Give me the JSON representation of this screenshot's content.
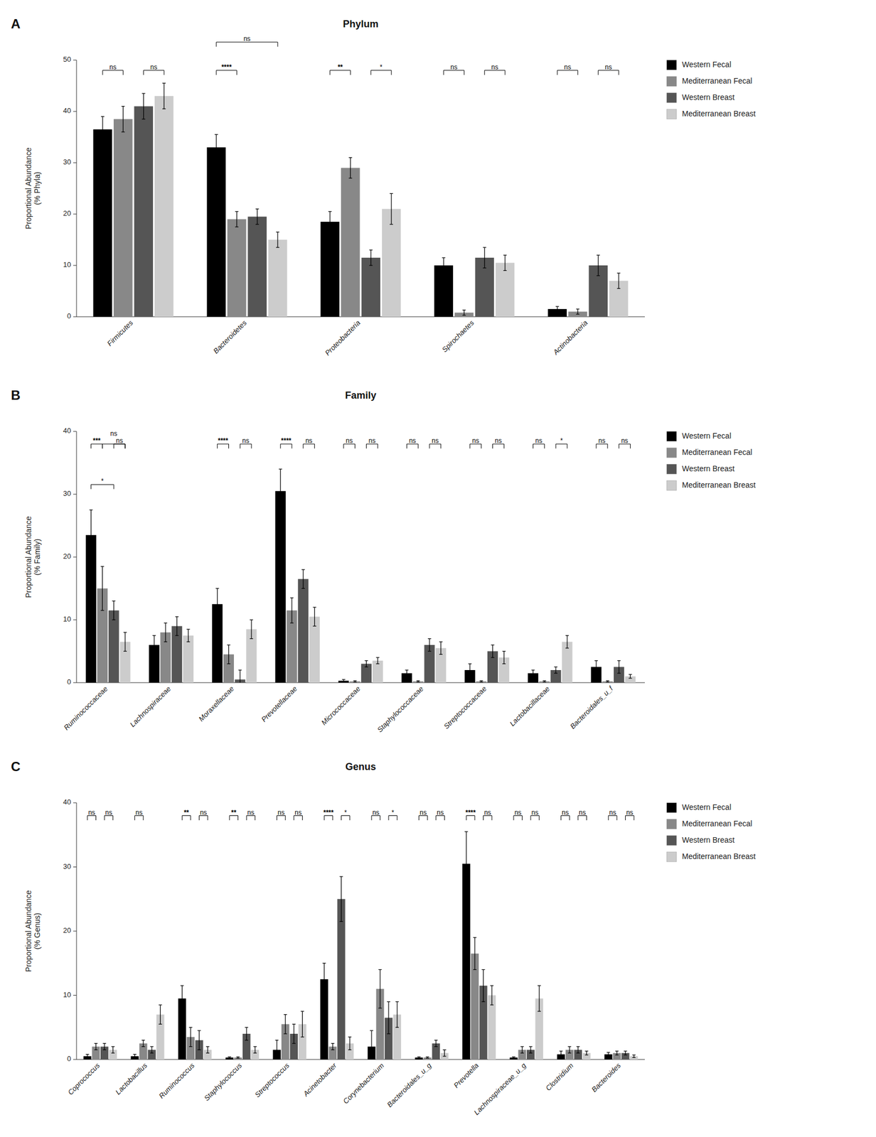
{
  "chart_data": [
    {
      "type": "bar",
      "title": "Phylum",
      "ylabel": "Proportional Abundance\n(% Phyla)",
      "categories": [
        "Firmicutes",
        "Bacteroidetes",
        "Proteobacteria",
        "Spirochaetes",
        "Actinobacteria"
      ],
      "series": [
        {
          "name": "Western Fecal",
          "color": "#000000",
          "values": [
            36.5,
            33.0,
            18.5,
            10.0,
            1.5
          ],
          "errors": [
            2.5,
            2.5,
            2.0,
            1.5,
            0.5
          ]
        },
        {
          "name": "Mediterranean Fecal",
          "color": "#888888",
          "values": [
            38.5,
            19.0,
            29.0,
            0.8,
            1.0
          ],
          "errors": [
            2.5,
            1.5,
            2.0,
            0.5,
            0.5
          ]
        },
        {
          "name": "Western Breast",
          "color": "#555555",
          "values": [
            41.0,
            19.5,
            11.5,
            11.5,
            10.0
          ],
          "errors": [
            2.5,
            1.5,
            1.5,
            2.0,
            2.0
          ]
        },
        {
          "name": "Mediterranean Breast",
          "color": "#cccccc",
          "values": [
            43.0,
            15.0,
            21.0,
            10.5,
            7.0
          ],
          "errors": [
            2.5,
            1.5,
            3.0,
            1.5,
            1.5
          ]
        }
      ],
      "ylim": [
        0,
        50
      ],
      "yticks": [
        0,
        10,
        20,
        30,
        40,
        50
      ],
      "grid": false,
      "legend": "upper right",
      "annotations": [
        {
          "text": "A"
        },
        {
          "text": "ns",
          "category": "Firmicutes",
          "from": "Western Fecal",
          "to": "Mediterranean Fecal",
          "y": 48
        },
        {
          "text": "ns",
          "category": "Firmicutes",
          "from": "Western Breast",
          "to": "Mediterranean Breast",
          "y": 48
        },
        {
          "text": "****",
          "category": "Bacteroidetes",
          "from": "Western Fecal",
          "to": "Mediterranean Fecal",
          "y": 48
        },
        {
          "text": "ns",
          "category": "Bacteroidetes",
          "from": "Western Fecal",
          "to": "Mediterranean Breast",
          "y": 53.5
        },
        {
          "text": "**",
          "category": "Proteobacteria",
          "from": "Western Fecal",
          "to": "Mediterranean Fecal",
          "y": 48
        },
        {
          "text": "*",
          "category": "Proteobacteria",
          "from": "Western Breast",
          "to": "Mediterranean Breast",
          "y": 48
        },
        {
          "text": "ns",
          "category": "Spirochaetes",
          "from": "Western Fecal",
          "to": "Mediterranean Fecal",
          "y": 48
        },
        {
          "text": "ns",
          "category": "Spirochaetes",
          "from": "Western Breast",
          "to": "Mediterranean Breast",
          "y": 48
        },
        {
          "text": "ns",
          "category": "Actinobacteria",
          "from": "Western Fecal",
          "to": "Mediterranean Fecal",
          "y": 48
        },
        {
          "text": "ns",
          "category": "Actinobacteria",
          "from": "Western Breast",
          "to": "Mediterranean Breast",
          "y": 48
        }
      ]
    },
    {
      "type": "bar",
      "title": "Family",
      "ylabel": "Proportional Abundance\n(% Family)",
      "categories": [
        "Ruminococcaceae",
        "Lachnospiraceae",
        "Moraxellaceae",
        "Prevotellaceae",
        "Micrococcaceae",
        "Staphylococcaceae",
        "Streptococcaceae",
        "Lactobacillaceae",
        "Bacteroidales_u_f"
      ],
      "series": [
        {
          "name": "Western Fecal",
          "color": "#000000",
          "values": [
            23.5,
            6.0,
            12.5,
            30.5,
            0.3,
            1.5,
            2.0,
            1.5,
            2.5
          ],
          "errors": [
            4.0,
            1.5,
            2.5,
            3.5,
            0.2,
            0.5,
            1.0,
            0.5,
            1.0
          ]
        },
        {
          "name": "Mediterranean Fecal",
          "color": "#888888",
          "values": [
            15.0,
            8.0,
            4.5,
            11.5,
            0.2,
            0.2,
            0.2,
            0.2,
            0.2
          ],
          "errors": [
            3.5,
            1.5,
            1.5,
            2.0,
            0.1,
            0.1,
            0.1,
            0.1,
            0.1
          ]
        },
        {
          "name": "Western Breast",
          "color": "#555555",
          "values": [
            11.5,
            9.0,
            0.5,
            16.5,
            3.0,
            6.0,
            5.0,
            2.0,
            2.5
          ],
          "errors": [
            1.5,
            1.5,
            1.5,
            1.5,
            0.5,
            1.0,
            1.0,
            0.5,
            1.0
          ]
        },
        {
          "name": "Mediterranean Breast",
          "color": "#cccccc",
          "values": [
            6.5,
            7.5,
            8.5,
            10.5,
            3.5,
            5.5,
            4.0,
            6.5,
            1.0
          ],
          "errors": [
            1.5,
            1.0,
            1.5,
            1.5,
            0.5,
            1.0,
            1.0,
            1.0,
            0.3
          ]
        }
      ],
      "ylim": [
        0,
        40
      ],
      "yticks": [
        0,
        10,
        20,
        30,
        40
      ],
      "grid": false,
      "legend": "upper right",
      "annotations": [
        {
          "text": "B"
        },
        {
          "text": "***",
          "category": "Ruminococcaceae",
          "from": "Western Fecal",
          "to": "Mediterranean Fecal",
          "y": 38
        },
        {
          "text": "*",
          "category": "Ruminococcaceae",
          "from": "Western Fecal",
          "to": "Western Breast",
          "y": 31.54
        },
        {
          "text": "ns",
          "category": "Ruminococcaceae",
          "from": "Western Breast",
          "to": "Mediterranean Breast",
          "y": 38
        },
        {
          "text": "ns",
          "category": "Ruminococcaceae",
          "from": "Mediterranean Fecal",
          "to": "Mediterranean Breast",
          "y": 38
        },
        {
          "text": "****",
          "category": "Moraxellaceae",
          "from": "Western Fecal",
          "to": "Mediterranean Fecal",
          "y": 38
        },
        {
          "text": "ns",
          "category": "Moraxellaceae",
          "from": "Western Breast",
          "to": "Mediterranean Breast",
          "y": 38
        },
        {
          "text": "****",
          "category": "Prevotellaceae",
          "from": "Western Fecal",
          "to": "Mediterranean Fecal",
          "y": 38
        },
        {
          "text": "ns",
          "category": "Prevotellaceae",
          "from": "Western Breast",
          "to": "Mediterranean Breast",
          "y": 38
        },
        {
          "text": "ns",
          "category": "Micrococcaceae",
          "from": "Western Fecal",
          "to": "Mediterranean Fecal",
          "y": 38
        },
        {
          "text": "ns",
          "category": "Micrococcaceae",
          "from": "Western Breast",
          "to": "Mediterranean Breast",
          "y": 38
        },
        {
          "text": "ns",
          "category": "Staphylococcaceae",
          "from": "Western Fecal",
          "to": "Mediterranean Fecal",
          "y": 38
        },
        {
          "text": "ns",
          "category": "Staphylococcaceae",
          "from": "Western Breast",
          "to": "Mediterranean Breast",
          "y": 38
        },
        {
          "text": "ns",
          "category": "Streptococcaceae",
          "from": "Western Fecal",
          "to": "Mediterranean Fecal",
          "y": 38
        },
        {
          "text": "ns",
          "category": "Streptococcaceae",
          "from": "Western Breast",
          "to": "Mediterranean Breast",
          "y": 38
        },
        {
          "text": "ns",
          "category": "Lactobacillaceae",
          "from": "Western Fecal",
          "to": "Mediterranean Fecal",
          "y": 38
        },
        {
          "text": "*",
          "category": "Lactobacillaceae",
          "from": "Western Breast",
          "to": "Mediterranean Breast",
          "y": 38
        },
        {
          "text": "ns",
          "category": "Bacteroidales_u_f",
          "from": "Western Fecal",
          "to": "Mediterranean Fecal",
          "y": 38
        },
        {
          "text": "ns",
          "category": "Bacteroidales_u_f",
          "from": "Western Breast",
          "to": "Mediterranean Breast",
          "y": 38
        }
      ]
    },
    {
      "type": "bar",
      "title": "Genus",
      "ylabel": "Proportional Abundance\n(% Genus)",
      "categories": [
        "Coprococcus",
        "Lactobacillus",
        "Ruminococcus",
        "Staphylococcus",
        "Streptococcus",
        "Acinetobacter",
        "Corynebacterium",
        "Bacteroidales_u_g",
        "Prevotella",
        "Lachnospiraceae_u_g",
        "Clostridium",
        "Bacteroides"
      ],
      "series": [
        {
          "name": "Western Fecal",
          "color": "#000000",
          "values": [
            0.5,
            0.5,
            9.5,
            0.3,
            1.5,
            12.5,
            2.0,
            0.3,
            30.5,
            0.3,
            0.8,
            0.8
          ],
          "errors": [
            0.3,
            0.3,
            2.0,
            0.1,
            1.5,
            2.5,
            2.5,
            0.1,
            5.0,
            0.1,
            0.5,
            0.3
          ]
        },
        {
          "name": "Mediterranean Fecal",
          "color": "#888888",
          "values": [
            2.0,
            2.5,
            3.5,
            0.3,
            5.5,
            2.0,
            11.0,
            0.3,
            16.5,
            1.5,
            1.5,
            1.0
          ],
          "errors": [
            0.5,
            0.5,
            1.5,
            0.1,
            1.5,
            0.5,
            3.0,
            0.1,
            2.5,
            0.5,
            0.5,
            0.3
          ]
        },
        {
          "name": "Western Breast",
          "color": "#555555",
          "values": [
            2.0,
            1.5,
            3.0,
            4.0,
            4.0,
            25.0,
            6.5,
            2.5,
            11.5,
            1.5,
            1.5,
            1.0
          ],
          "errors": [
            0.5,
            0.5,
            1.5,
            1.0,
            1.5,
            3.5,
            2.5,
            0.5,
            2.5,
            0.5,
            0.5,
            0.3
          ]
        },
        {
          "name": "Mediterranean Breast",
          "color": "#cccccc",
          "values": [
            1.5,
            7.0,
            1.5,
            1.5,
            5.5,
            2.5,
            7.0,
            1.0,
            10.0,
            9.5,
            1.0,
            0.5
          ],
          "errors": [
            0.5,
            1.5,
            0.5,
            0.5,
            2.0,
            1.0,
            2.0,
            0.5,
            1.5,
            2.0,
            0.3,
            0.2
          ]
        }
      ],
      "ylim": [
        0,
        40
      ],
      "yticks": [
        0,
        10,
        20,
        30,
        40
      ],
      "grid": false,
      "legend": "upper right",
      "annotations": [
        {
          "text": "C"
        },
        {
          "text": "ns",
          "category": "Coprococcus",
          "from": "Western Fecal",
          "to": "Mediterranean Fecal",
          "y": 38
        },
        {
          "text": "ns",
          "category": "Coprococcus",
          "from": "Western Breast",
          "to": "Mediterranean Breast",
          "y": 38
        },
        {
          "text": "ns",
          "category": "Lactobacillus",
          "from": "Western Fecal",
          "to": "Mediterranean Fecal",
          "y": 38
        },
        {
          "text": "**",
          "category": "Ruminococcus",
          "from": "Western Fecal",
          "to": "Mediterranean Fecal",
          "y": 38
        },
        {
          "text": "ns",
          "category": "Ruminococcus",
          "from": "Western Breast",
          "to": "Mediterranean Breast",
          "y": 38
        },
        {
          "text": "**",
          "category": "Staphylococcus",
          "from": "Western Fecal",
          "to": "Mediterranean Fecal",
          "y": 38
        },
        {
          "text": "ns",
          "category": "Staphylococcus",
          "from": "Western Breast",
          "to": "Mediterranean Breast",
          "y": 38
        },
        {
          "text": "ns",
          "category": "Streptococcus",
          "from": "Western Fecal",
          "to": "Mediterranean Fecal",
          "y": 38
        },
        {
          "text": "ns",
          "category": "Streptococcus",
          "from": "Western Breast",
          "to": "Mediterranean Breast",
          "y": 38
        },
        {
          "text": "****",
          "category": "Acinetobacter",
          "from": "Western Fecal",
          "to": "Mediterranean Fecal",
          "y": 38
        },
        {
          "text": "*",
          "category": "Acinetobacter",
          "from": "Western Breast",
          "to": "Mediterranean Breast",
          "y": 38
        },
        {
          "text": "ns",
          "category": "Corynebacterium",
          "from": "Western Fecal",
          "to": "Mediterranean Fecal",
          "y": 38
        },
        {
          "text": "*",
          "category": "Corynebacterium",
          "from": "Western Breast",
          "to": "Mediterranean Breast",
          "y": 38
        },
        {
          "text": "ns",
          "category": "Bacteroidales_u_g",
          "from": "Western Fecal",
          "to": "Mediterranean Fecal",
          "y": 38
        },
        {
          "text": "ns",
          "category": "Bacteroidales_u_g",
          "from": "Western Breast",
          "to": "Mediterranean Breast",
          "y": 38
        },
        {
          "text": "****",
          "category": "Prevotella",
          "from": "Western Fecal",
          "to": "Mediterranean Fecal",
          "y": 38
        },
        {
          "text": "ns",
          "category": "Prevotella",
          "from": "Western Breast",
          "to": "Mediterranean Breast",
          "y": 38
        },
        {
          "text": "ns",
          "category": "Lachnospiraceae_u_g",
          "from": "Western Fecal",
          "to": "Mediterranean Fecal",
          "y": 38
        },
        {
          "text": "ns",
          "category": "Lachnospiraceae_u_g",
          "from": "Western Breast",
          "to": "Mediterranean Breast",
          "y": 38
        },
        {
          "text": "ns",
          "category": "Clostridium",
          "from": "Western Fecal",
          "to": "Mediterranean Fecal",
          "y": 38
        },
        {
          "text": "ns",
          "category": "Clostridium",
          "from": "Western Breast",
          "to": "Mediterranean Breast",
          "y": 38
        },
        {
          "text": "ns",
          "category": "Bacteroides",
          "from": "Western Fecal",
          "to": "Mediterranean Fecal",
          "y": 38
        },
        {
          "text": "ns",
          "category": "Bacteroides",
          "from": "Western Breast",
          "to": "Mediterranean Breast",
          "y": 38
        }
      ]
    }
  ]
}
